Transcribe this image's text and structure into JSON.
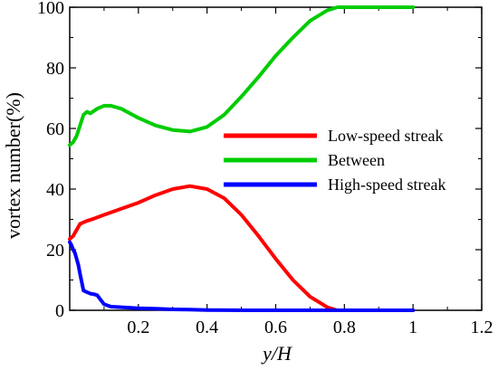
{
  "chart_data": {
    "type": "line",
    "xlabel": "y/H",
    "ylabel": "vortex number(%)",
    "xlim": [
      0,
      1.2
    ],
    "ylim": [
      0,
      100
    ],
    "x_ticks": [
      "0.2",
      "0.4",
      "0.6",
      "0.8",
      "1",
      "1.2"
    ],
    "y_ticks": [
      "0",
      "20",
      "40",
      "60",
      "80",
      "100"
    ],
    "legend_position": "right-center",
    "grid": false,
    "series": [
      {
        "name": "Low-speed streak",
        "color": "#ff0000",
        "x": [
          0.0,
          0.01,
          0.02,
          0.03,
          0.05,
          0.07,
          0.1,
          0.15,
          0.2,
          0.25,
          0.3,
          0.35,
          0.4,
          0.45,
          0.5,
          0.55,
          0.6,
          0.65,
          0.7,
          0.75,
          0.77,
          0.78,
          0.8,
          0.9,
          1.0
        ],
        "values": [
          23.5,
          24.5,
          26.5,
          28.5,
          29.5,
          30.2,
          31.5,
          33.5,
          35.5,
          38,
          40,
          41,
          40,
          37,
          31.5,
          24.5,
          17,
          10,
          4.5,
          1,
          0.3,
          0,
          0,
          0,
          0
        ]
      },
      {
        "name": "Between",
        "color": "#00cc00",
        "x": [
          0.0,
          0.01,
          0.02,
          0.03,
          0.04,
          0.05,
          0.06,
          0.08,
          0.1,
          0.12,
          0.15,
          0.2,
          0.25,
          0.3,
          0.35,
          0.4,
          0.45,
          0.5,
          0.55,
          0.6,
          0.65,
          0.7,
          0.75,
          0.78,
          0.8,
          0.9,
          1.0
        ],
        "values": [
          54.5,
          55.5,
          57.5,
          61,
          64.5,
          65.5,
          65,
          66.5,
          67.5,
          67.5,
          66.5,
          63.5,
          61,
          59.5,
          59,
          60.5,
          64.5,
          70.5,
          77,
          84,
          90,
          95.5,
          99,
          100,
          100,
          100,
          100
        ]
      },
      {
        "name": "High-speed streak",
        "color": "#0000ff",
        "x": [
          0.0,
          0.005,
          0.01,
          0.015,
          0.02,
          0.025,
          0.03,
          0.04,
          0.05,
          0.06,
          0.07,
          0.08,
          0.1,
          0.12,
          0.15,
          0.2,
          0.25,
          0.3,
          0.35,
          0.4,
          0.5,
          0.6,
          0.7,
          0.8,
          0.9,
          1.0
        ],
        "values": [
          22.5,
          21.5,
          20,
          19,
          17,
          15,
          12,
          6.5,
          6,
          5.5,
          5.3,
          5,
          2,
          1.2,
          1,
          0.7,
          0.5,
          0.3,
          0.2,
          0.1,
          0,
          0,
          0,
          0,
          0,
          0
        ]
      }
    ]
  }
}
